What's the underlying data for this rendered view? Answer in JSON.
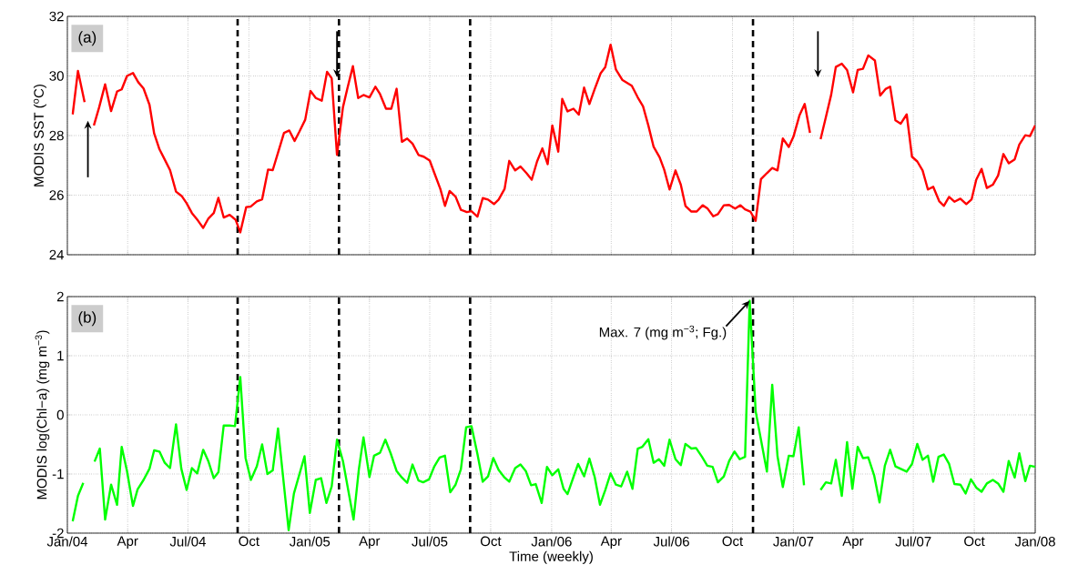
{
  "chart_data": [
    {
      "type": "line",
      "ylabel": "MODIS SST ($^{o}$C)",
      "annotations": [
        "(a)"
      ],
      "x": [
        "2004-01-09",
        "2004-01-17",
        "2004-01-27",
        "2004-02-03",
        "2004-02-10",
        "2004-02-18",
        "2004-02-27",
        "2004-03-07",
        "2004-03-16",
        "2004-03-23",
        "2004-03-31",
        "2004-04-09",
        "2004-04-17",
        "2004-04-25",
        "2004-05-04",
        "2004-05-11",
        "2004-05-19",
        "2004-05-28",
        "2004-06-04",
        "2004-06-13",
        "2004-06-22",
        "2004-06-29",
        "2004-07-07",
        "2004-07-16",
        "2004-07-24",
        "2004-08-01",
        "2004-08-09",
        "2004-08-16",
        "2004-08-24",
        "2004-09-02",
        "2004-09-11",
        "2004-09-18",
        "2004-09-27",
        "2004-10-04",
        "2004-10-13",
        "2004-10-21",
        "2004-10-30",
        "2004-11-06",
        "2004-11-15",
        "2004-11-23",
        "2004-12-01",
        "2004-12-09",
        "2004-12-16",
        "2004-12-25",
        "2005-01-02",
        "2005-01-10",
        "2005-01-19",
        "2005-01-27",
        "2005-02-03",
        "2005-02-11",
        "2005-02-20",
        "2005-02-27",
        "2005-03-07",
        "2005-03-15",
        "2005-03-23",
        "2005-04-01",
        "2005-04-10",
        "2005-04-17",
        "2005-04-26",
        "2005-05-04",
        "2005-05-12",
        "2005-05-20",
        "2005-05-28",
        "2005-06-05",
        "2005-06-14",
        "2005-06-22",
        "2005-07-01",
        "2005-07-08",
        "2005-07-17",
        "2005-07-24",
        "2005-07-31",
        "2005-08-09",
        "2005-08-17",
        "2005-08-26",
        "2005-09-02",
        "2005-09-11",
        "2005-09-19",
        "2005-09-27",
        "2005-10-06",
        "2005-10-13",
        "2005-10-22",
        "2005-10-29",
        "2005-11-07",
        "2005-11-15",
        "2005-11-24",
        "2005-12-02",
        "2005-12-10",
        "2005-12-18",
        "2005-12-26",
        "2006-01-02",
        "2006-01-11",
        "2006-01-17",
        "2006-01-25",
        "2006-02-03",
        "2006-02-11",
        "2006-02-19",
        "2006-02-27",
        "2006-03-07",
        "2006-03-16",
        "2006-03-23",
        "2006-03-31",
        "2006-04-08",
        "2006-04-18",
        "2006-05-02",
        "2006-05-11",
        "2006-05-19",
        "2006-05-27",
        "2006-06-04",
        "2006-06-13",
        "2006-06-20",
        "2006-06-28",
        "2006-07-07",
        "2006-07-15",
        "2006-07-22",
        "2006-07-31",
        "2006-08-08",
        "2006-08-17",
        "2006-08-24",
        "2006-09-02",
        "2006-09-09",
        "2006-09-18",
        "2006-09-26",
        "2006-10-05",
        "2006-10-13",
        "2006-10-20",
        "2006-10-28",
        "2006-11-05",
        "2006-11-13",
        "2006-11-22",
        "2006-11-30",
        "2006-12-08",
        "2006-12-16",
        "2006-12-25",
        "2007-01-01",
        "2007-01-10",
        "2007-01-18",
        "2007-01-26",
        "2007-02-03",
        "2007-02-11",
        "2007-02-19",
        "2007-02-27",
        "2007-03-06",
        "2007-03-15",
        "2007-03-23",
        "2007-04-01",
        "2007-04-08",
        "2007-04-16",
        "2007-04-24",
        "2007-05-04",
        "2007-05-12",
        "2007-05-20",
        "2007-05-27",
        "2007-06-04",
        "2007-06-12",
        "2007-06-21",
        "2007-06-29",
        "2007-07-07",
        "2007-07-15",
        "2007-07-23",
        "2007-07-31",
        "2007-08-09",
        "2007-08-16",
        "2007-08-24",
        "2007-09-01",
        "2007-09-10",
        "2007-09-19",
        "2007-09-27",
        "2007-10-04",
        "2007-10-12",
        "2007-10-20",
        "2007-10-29",
        "2007-11-06",
        "2007-11-14",
        "2007-11-22",
        "2007-12-01",
        "2007-12-08",
        "2007-12-17",
        "2007-12-24",
        "2008-01-01"
      ],
      "series": [
        {
          "color": "#ff0000",
          "values": [
            28.71,
            30.17,
            29.12,
            null,
            28.34,
            28.95,
            29.72,
            28.82,
            29.48,
            29.55,
            30.0,
            30.1,
            29.79,
            29.58,
            29.03,
            28.07,
            27.54,
            27.15,
            26.84,
            26.12,
            25.96,
            25.73,
            25.4,
            25.15,
            24.9,
            25.22,
            25.4,
            25.91,
            25.25,
            25.34,
            25.17,
            24.75,
            25.6,
            25.62,
            25.79,
            25.86,
            26.86,
            26.84,
            27.5,
            28.09,
            28.17,
            27.82,
            28.12,
            28.53,
            29.5,
            29.26,
            29.17,
            30.14,
            29.92,
            27.35,
            28.95,
            29.61,
            30.33,
            29.26,
            29.36,
            29.28,
            29.64,
            29.39,
            28.9,
            28.9,
            29.57,
            27.79,
            27.9,
            27.73,
            27.35,
            27.29,
            27.16,
            26.74,
            26.21,
            25.64,
            26.14,
            25.95,
            25.51,
            25.43,
            25.46,
            25.28,
            25.9,
            25.85,
            25.7,
            25.85,
            26.21,
            27.15,
            26.83,
            26.96,
            26.74,
            26.52,
            27.13,
            27.57,
            27.04,
            28.34,
            27.46,
            29.23,
            28.81,
            28.9,
            28.7,
            29.61,
            29.06,
            29.56,
            30.09,
            30.3,
            31.05,
            30.22,
            29.86,
            29.67,
            29.28,
            28.98,
            28.34,
            27.62,
            27.27,
            26.85,
            26.19,
            26.83,
            26.35,
            25.64,
            25.45,
            25.45,
            25.66,
            25.56,
            25.29,
            25.36,
            25.66,
            25.67,
            25.55,
            25.66,
            25.52,
            25.45,
            25.14,
            26.54,
            26.74,
            26.91,
            26.83,
            27.9,
            27.62,
            27.96,
            28.67,
            29.06,
            28.09,
            null,
            27.88,
            28.62,
            29.37,
            30.3,
            30.41,
            30.2,
            29.45,
            30.2,
            30.24,
            30.69,
            30.52,
            29.34,
            29.56,
            29.64,
            28.51,
            28.4,
            28.71,
            27.29,
            27.13,
            26.83,
            26.19,
            26.28,
            25.8,
            25.64,
            25.94,
            25.78,
            25.88,
            25.7,
            25.86,
            26.52,
            26.88,
            26.24,
            26.35,
            26.66,
            27.38,
            27.07,
            27.2,
            27.7,
            28.01,
            27.98,
            28.34
          ]
        }
      ],
      "xlim": [
        "2004-01-01",
        "2008-01-01"
      ],
      "ylim": [
        24,
        32
      ],
      "xticks": [
        {
          "value": "2004-01-01",
          "label": null
        },
        {
          "value": "2004-04-01",
          "label": null
        },
        {
          "value": "2004-07-01",
          "label": null
        },
        {
          "value": "2004-10-01",
          "label": null
        },
        {
          "value": "2005-01-01",
          "label": null
        },
        {
          "value": "2005-04-01",
          "label": null
        },
        {
          "value": "2005-07-01",
          "label": null
        },
        {
          "value": "2005-10-01",
          "label": null
        },
        {
          "value": "2006-01-01",
          "label": null
        },
        {
          "value": "2006-04-01",
          "label": null
        },
        {
          "value": "2006-07-01",
          "label": null
        },
        {
          "value": "2006-10-01",
          "label": null
        },
        {
          "value": "2007-01-01",
          "label": null
        },
        {
          "value": "2007-04-01",
          "label": null
        },
        {
          "value": "2007-07-01",
          "label": null
        },
        {
          "value": "2007-10-01",
          "label": null
        },
        {
          "value": "2008-01-01",
          "label": null
        }
      ],
      "yticks": [
        24,
        26,
        28,
        30,
        32
      ],
      "tick_labels": "y",
      "grid": true,
      "ref_lines": [
        {
          "axis": "x",
          "value": "2004-09-14",
          "color": "#000000",
          "line_style": "dashed"
        },
        {
          "axis": "x",
          "value": "2005-02-14",
          "color": "#000000",
          "line_style": "dashed"
        },
        {
          "axis": "x",
          "value": "2005-08-31",
          "color": "#000000",
          "line_style": "dashed"
        },
        {
          "axis": "x",
          "value": "2006-11-01",
          "color": "#000000",
          "line_style": "dashed"
        }
      ]
    },
    {
      "type": "line",
      "ylabel": "MODIS log(Chl−a) (mg m$^{−3}$)",
      "xlabel": "Time (weekly)",
      "annotations": [
        "(b)",
        {
          "text": "Max. 7 (mg m$^{−3}$; Fg.)",
          "x": "2006-10-27",
          "y": 1.93
        }
      ],
      "x": [
        "2004-01-09",
        "2004-01-17",
        "2004-01-25",
        "2004-02-03",
        "2004-02-11",
        "2004-02-19",
        "2004-02-27",
        "2004-03-07",
        "2004-03-16",
        "2004-03-23",
        "2004-03-31",
        "2004-04-09",
        "2004-04-16",
        "2004-04-25",
        "2004-05-04",
        "2004-05-11",
        "2004-05-19",
        "2004-05-27",
        "2004-06-04",
        "2004-06-13",
        "2004-06-21",
        "2004-06-29",
        "2004-07-07",
        "2004-07-15",
        "2004-07-24",
        "2004-08-01",
        "2004-08-09",
        "2004-08-16",
        "2004-08-24",
        "2004-09-02",
        "2004-09-10",
        "2004-09-18",
        "2004-09-26",
        "2004-10-04",
        "2004-10-13",
        "2004-10-21",
        "2004-10-29",
        "2004-11-06",
        "2004-11-14",
        "2004-11-30",
        "2004-12-08",
        "2004-12-24",
        "2005-01-01",
        "2005-01-10",
        "2005-01-18",
        "2005-01-26",
        "2005-02-03",
        "2005-02-11",
        "2005-02-20",
        "2005-03-08",
        "2005-03-16",
        "2005-03-23",
        "2005-04-01",
        "2005-04-08",
        "2005-04-17",
        "2005-04-25",
        "2005-05-03",
        "2005-05-12",
        "2005-05-20",
        "2005-05-28",
        "2005-06-05",
        "2005-06-14",
        "2005-06-21",
        "2005-06-30",
        "2005-07-08",
        "2005-07-16",
        "2005-07-24",
        "2005-08-01",
        "2005-08-09",
        "2005-08-17",
        "2005-08-25",
        "2005-09-02",
        "2005-09-11",
        "2005-09-19",
        "2005-09-27",
        "2005-10-05",
        "2005-10-13",
        "2005-10-22",
        "2005-10-29",
        "2005-11-07",
        "2005-11-15",
        "2005-11-23",
        "2005-12-01",
        "2005-12-08",
        "2005-12-17",
        "2005-12-25",
        "2006-01-02",
        "2006-01-11",
        "2006-01-19",
        "2006-01-25",
        "2006-02-03",
        "2006-02-10",
        "2006-02-19",
        "2006-02-27",
        "2006-03-07",
        "2006-03-15",
        "2006-03-23",
        "2006-03-31",
        "2006-04-08",
        "2006-04-16",
        "2006-04-25",
        "2006-05-03",
        "2006-05-11",
        "2006-05-18",
        "2006-05-27",
        "2006-06-04",
        "2006-06-12",
        "2006-06-20",
        "2006-06-28",
        "2006-07-07",
        "2006-07-15",
        "2006-07-22",
        "2006-07-31",
        "2006-08-07",
        "2006-08-16",
        "2006-08-24",
        "2006-09-01",
        "2006-09-09",
        "2006-09-18",
        "2006-09-26",
        "2006-10-04",
        "2006-10-12",
        "2006-10-20",
        "2006-10-27",
        "2006-11-05",
        "2006-11-22",
        "2006-11-30",
        "2006-12-08",
        "2006-12-16",
        "2006-12-25",
        "2007-01-01",
        "2007-01-09",
        "2007-01-17",
        "2007-01-30",
        "2007-02-11",
        "2007-02-19",
        "2007-02-27",
        "2007-03-06",
        "2007-03-15",
        "2007-03-23",
        "2007-03-31",
        "2007-04-08",
        "2007-04-16",
        "2007-04-24",
        "2007-05-03",
        "2007-05-11",
        "2007-05-19",
        "2007-05-27",
        "2007-06-04",
        "2007-06-21",
        "2007-06-29",
        "2007-07-07",
        "2007-07-15",
        "2007-07-23",
        "2007-07-31",
        "2007-08-08",
        "2007-08-16",
        "2007-08-24",
        "2007-09-01",
        "2007-09-10",
        "2007-09-18",
        "2007-09-26",
        "2007-10-04",
        "2007-10-12",
        "2007-10-20",
        "2007-10-29",
        "2007-11-06",
        "2007-11-14",
        "2007-11-22",
        "2007-12-01",
        "2007-12-08",
        "2007-12-17",
        "2007-12-24",
        "2008-01-01"
      ],
      "series": [
        {
          "color": "#00ff00",
          "values": [
            -1.8,
            -1.37,
            -1.15,
            null,
            -0.79,
            -0.57,
            -1.77,
            -1.18,
            -1.52,
            -0.54,
            -0.95,
            -1.54,
            -1.26,
            -1.1,
            -0.91,
            -0.6,
            -0.62,
            -0.81,
            -0.9,
            -0.16,
            -0.91,
            -1.27,
            -0.9,
            -0.99,
            -0.59,
            -0.79,
            -1.07,
            -0.97,
            -0.18,
            -0.18,
            -0.19,
            0.64,
            -0.73,
            -1.1,
            -0.87,
            -0.5,
            -1.0,
            -0.94,
            -0.23,
            -1.95,
            -1.33,
            -0.7,
            -1.66,
            -1.1,
            -1.07,
            -1.49,
            -1.21,
            -0.42,
            -0.78,
            -1.77,
            -0.92,
            -0.38,
            -1.05,
            -0.69,
            -0.64,
            -0.42,
            -0.65,
            -0.95,
            -1.06,
            -1.15,
            -0.84,
            -1.11,
            -1.14,
            -1.09,
            -0.87,
            -0.72,
            -0.69,
            -1.31,
            -1.18,
            -0.92,
            -0.21,
            -0.19,
            -0.66,
            -1.13,
            -1.04,
            -0.73,
            -0.93,
            -1.06,
            -1.13,
            -0.9,
            -0.84,
            -0.95,
            -1.19,
            -1.17,
            -1.49,
            -0.88,
            -1.02,
            -0.92,
            -1.25,
            -1.34,
            -1.05,
            -0.83,
            -1.04,
            -0.74,
            -1.05,
            -1.52,
            -1.27,
            -0.99,
            -1.18,
            -1.21,
            -0.96,
            -1.25,
            -0.57,
            -0.54,
            -0.41,
            -0.81,
            -0.75,
            -0.86,
            -0.42,
            -0.75,
            -0.85,
            -0.49,
            -0.57,
            -0.56,
            -0.71,
            -0.86,
            -0.88,
            -1.14,
            -1.04,
            -0.78,
            -0.62,
            -0.75,
            -0.71,
            1.93,
            0.06,
            -0.96,
            0.51,
            -0.7,
            -1.22,
            -0.69,
            -0.7,
            -0.21,
            -1.19,
            null,
            -1.27,
            -1.14,
            -1.16,
            -0.76,
            -1.37,
            -0.46,
            -1.25,
            -0.54,
            -0.73,
            -0.72,
            -1.03,
            -1.48,
            -0.86,
            -0.59,
            -0.87,
            -0.96,
            -0.83,
            -0.49,
            -0.76,
            -0.69,
            -1.13,
            -0.71,
            -0.67,
            -0.83,
            -1.17,
            -1.18,
            -1.33,
            -1.09,
            -1.23,
            -1.3,
            -1.16,
            -1.1,
            -1.16,
            -1.3,
            -0.78,
            -1.06,
            -0.65,
            -1.12,
            -0.86,
            -0.88
          ]
        }
      ],
      "xlim": [
        "2004-01-01",
        "2008-01-01"
      ],
      "ylim": [
        -2,
        2
      ],
      "xticks": [
        {
          "value": "2004-01-01",
          "label": "Jan/04"
        },
        {
          "value": "2004-04-01",
          "label": "Apr"
        },
        {
          "value": "2004-07-01",
          "label": "Jul/04"
        },
        {
          "value": "2004-10-01",
          "label": "Oct"
        },
        {
          "value": "2005-01-01",
          "label": "Jan/05"
        },
        {
          "value": "2005-04-01",
          "label": "Apr"
        },
        {
          "value": "2005-07-01",
          "label": "Jul/05"
        },
        {
          "value": "2005-10-01",
          "label": "Oct"
        },
        {
          "value": "2006-01-01",
          "label": "Jan/06"
        },
        {
          "value": "2006-04-01",
          "label": "Apr"
        },
        {
          "value": "2006-07-01",
          "label": "Jul/06"
        },
        {
          "value": "2006-10-01",
          "label": "Oct"
        },
        {
          "value": "2007-01-01",
          "label": "Jan/07"
        },
        {
          "value": "2007-04-01",
          "label": "Apr"
        },
        {
          "value": "2007-07-01",
          "label": "Jul/07"
        },
        {
          "value": "2007-10-01",
          "label": "Oct"
        },
        {
          "value": "2008-01-01",
          "label": "Jan/08"
        }
      ],
      "yticks": [
        -2,
        -1,
        0,
        1,
        2
      ],
      "grid": true,
      "ref_lines": [
        {
          "axis": "x",
          "value": "2004-09-14",
          "color": "#000000",
          "line_style": "dashed"
        },
        {
          "axis": "x",
          "value": "2005-02-14",
          "color": "#000000",
          "line_style": "dashed"
        },
        {
          "axis": "x",
          "value": "2005-08-31",
          "color": "#000000",
          "line_style": "dashed"
        },
        {
          "axis": "x",
          "value": "2006-11-01",
          "color": "#000000",
          "line_style": "dashed"
        }
      ]
    }
  ]
}
